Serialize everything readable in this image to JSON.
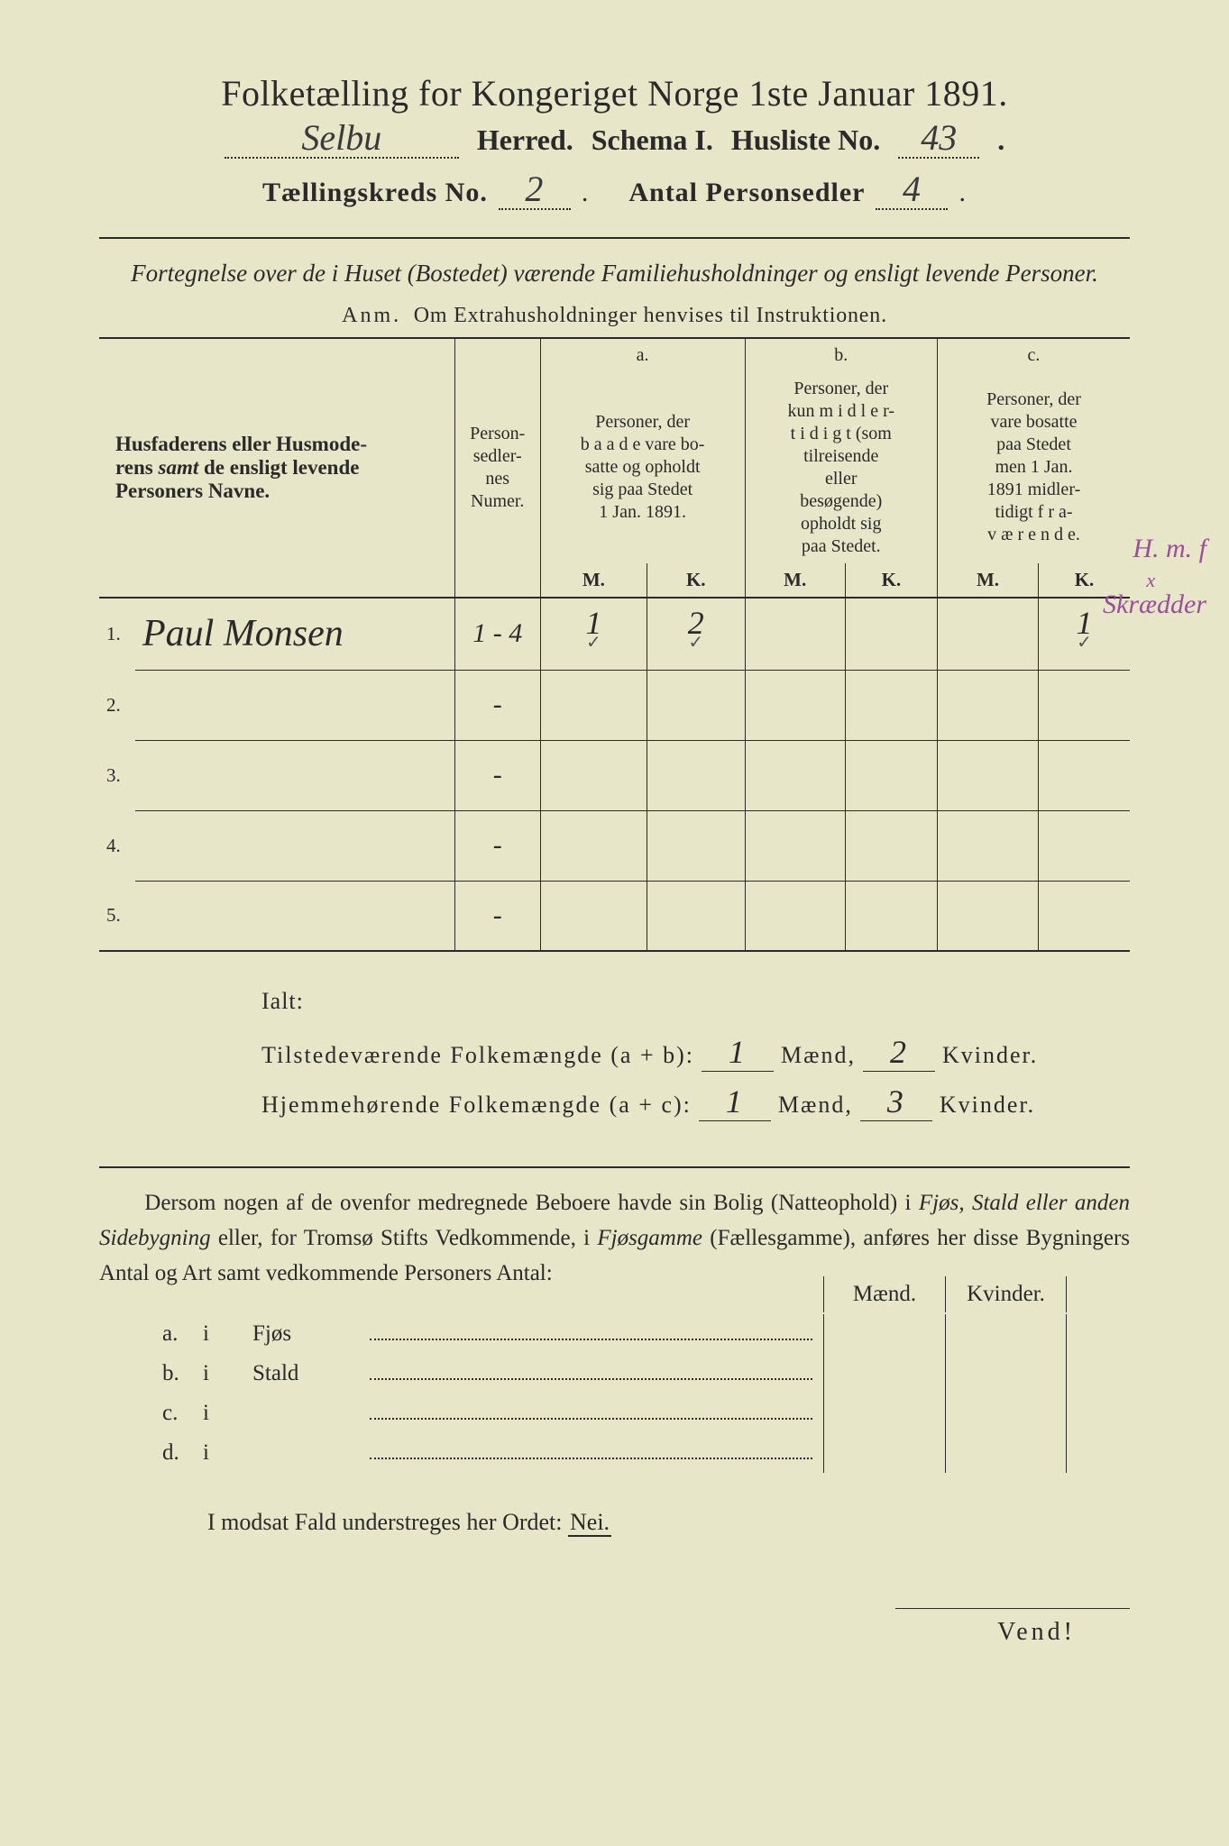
{
  "header": {
    "title": "Folketælling for Kongeriget Norge 1ste Januar 1891.",
    "herred_value": "Selbu",
    "herred_label": "Herred.",
    "schema_label": "Schema I.",
    "husliste_label": "Husliste No.",
    "husliste_value": "43",
    "kreds_label": "Tællingskreds No.",
    "kreds_value": "2",
    "antal_label": "Antal Personsedler",
    "antal_value": "4"
  },
  "subtitle": "Fortegnelse over de i Huset (Bostedet) værende Familiehusholdninger og ensligt levende Personer.",
  "anm": {
    "prefix": "Anm.",
    "text": "Om Extrahusholdninger henvises til Instruktionen."
  },
  "table": {
    "col1_header": "Husfaderens eller Husmoderens samt de ensligt levende Personers Navne.",
    "col2_header": "Personsedlernes Numer.",
    "col_a_label": "a.",
    "col_a_text": "Personer, der baade vare bosatte og opholdt sig paa Stedet 1 Jan. 1891.",
    "col_b_label": "b.",
    "col_b_text": "Personer, der kun midlertidigt (som tilreisende eller besøgende) opholdt sig paa Stedet.",
    "col_c_label": "c.",
    "col_c_text": "Personer, der vare bosatte paa Stedet men 1 Jan. 1891 midlertidigt fraværende.",
    "m_label": "M.",
    "k_label": "K.",
    "rows": [
      {
        "num": "1.",
        "name": "Paul Monsen",
        "numer": "1 - 4",
        "a_m": "1",
        "a_k": "2",
        "b_m": "",
        "b_k": "",
        "c_m": "",
        "c_k": "1",
        "chk_am": "✓",
        "chk_ak": "✓",
        "chk_ck": "✓"
      },
      {
        "num": "2.",
        "name": "",
        "numer": "-",
        "a_m": "",
        "a_k": "",
        "b_m": "",
        "b_k": "",
        "c_m": "",
        "c_k": ""
      },
      {
        "num": "3.",
        "name": "",
        "numer": "-",
        "a_m": "",
        "a_k": "",
        "b_m": "",
        "b_k": "",
        "c_m": "",
        "c_k": ""
      },
      {
        "num": "4.",
        "name": "",
        "numer": "-",
        "a_m": "",
        "a_k": "",
        "b_m": "",
        "b_k": "",
        "c_m": "",
        "c_k": ""
      },
      {
        "num": "5.",
        "name": "",
        "numer": "-",
        "a_m": "",
        "a_k": "",
        "b_m": "",
        "b_k": "",
        "c_m": "",
        "c_k": ""
      }
    ],
    "margin_note_1": "H. m. f",
    "margin_note_2": "Skrædder"
  },
  "ialt": {
    "title": "Ialt:",
    "line1_label": "Tilstedeværende Folkemængde (a + b):",
    "line1_m": "1",
    "line1_k": "2",
    "line2_label": "Hjemmehørende Folkemængde (a + c):",
    "line2_m": "1",
    "line2_k": "3",
    "maend": "Mænd,",
    "kvinder": "Kvinder."
  },
  "dersom": {
    "text1": "Dersom nogen af de ovenfor medregnede Beboere havde sin Bolig (Natteophold) i ",
    "it1": "Fjøs, Stald eller anden Sidebygning",
    "text2": " eller, for Tromsø Stifts Vedkommende, i ",
    "it2": "Fjøsgamme",
    "text3": " (Fællesgamme), anføres her disse Bygningers Antal og Art samt vedkommende Personers Antal:"
  },
  "outbuild": {
    "maend": "Mænd.",
    "kvinder": "Kvinder.",
    "rows": [
      {
        "label": "a.",
        "i": "i",
        "name": "Fjøs"
      },
      {
        "label": "b.",
        "i": "i",
        "name": "Stald"
      },
      {
        "label": "c.",
        "i": "i",
        "name": ""
      },
      {
        "label": "d.",
        "i": "i",
        "name": ""
      }
    ]
  },
  "modsat": {
    "text": "I modsat Fald understreges her Ordet:",
    "nei": "Nei."
  },
  "vend": "Vend!"
}
